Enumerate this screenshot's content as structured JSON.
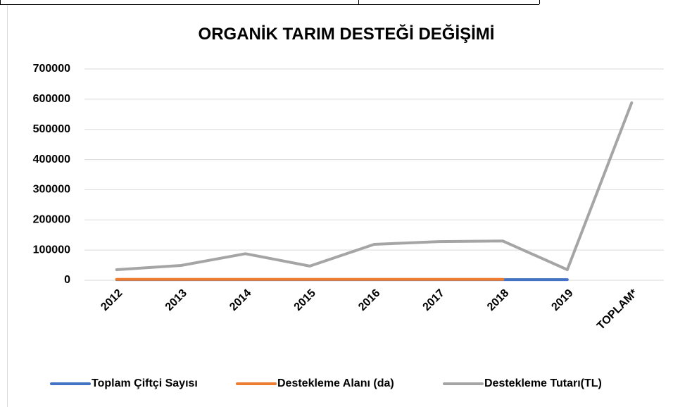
{
  "chart_data": {
    "type": "line",
    "title": "ORGANİK TARIM DESTEĞİ  DEĞİŞİMİ",
    "categories": [
      "2012",
      "2013",
      "2014",
      "2015",
      "2016",
      "2017",
      "2018",
      "2019",
      "TOPLAM*"
    ],
    "series": [
      {
        "name": "Toplam Çiftçi Sayısı",
        "color": "#4472c4",
        "values": [
          2000,
          2000,
          2000,
          2000,
          2000,
          2000,
          2000,
          2000,
          null
        ]
      },
      {
        "name": "Destekleme Alanı (da)",
        "color": "#ed7d31",
        "values": [
          3000,
          3000,
          3000,
          3000,
          3000,
          3000,
          3000,
          null,
          null
        ]
      },
      {
        "name": "Destekleme  Tutarı(TL)",
        "color": "#a5a5a5",
        "values": [
          35000,
          49000,
          88000,
          47000,
          119000,
          128000,
          130000,
          35000,
          588000
        ]
      }
    ],
    "ylim": [
      0,
      700000
    ],
    "yticks": [
      0,
      100000,
      200000,
      300000,
      400000,
      500000,
      600000,
      700000
    ],
    "grid": true,
    "legend": "bottom"
  }
}
